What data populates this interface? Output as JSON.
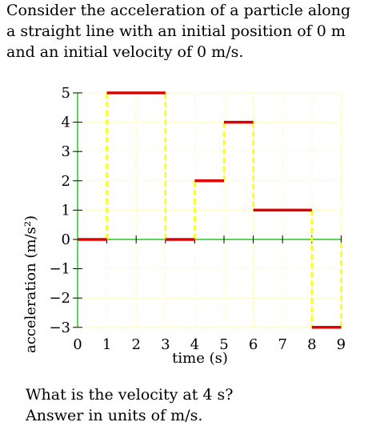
{
  "problem": {
    "intro_lines": [
      "Consider the acceleration of a particle along",
      "a straight line with an initial position of 0 m",
      "and an initial velocity of 0 m/s."
    ],
    "question_lines": [
      "What is the velocity at 4 s?",
      "Answer in units of  m/s."
    ]
  },
  "chart_data": {
    "type": "line",
    "xlabel": "time (s)",
    "ylabel": "acceleration (m/s²)",
    "xlim": [
      0,
      9
    ],
    "ylim": [
      -3,
      5
    ],
    "x_ticks": [
      0,
      1,
      2,
      3,
      4,
      5,
      6,
      7,
      8,
      9
    ],
    "y_ticks": [
      5,
      4,
      3,
      2,
      1,
      0,
      -1,
      -2,
      -3
    ],
    "y_tick_labels": [
      "5",
      "4",
      "3",
      "2",
      "1",
      "0",
      "−1",
      "−2",
      "−3"
    ],
    "grid": true,
    "series": [
      {
        "segments": [
          {
            "x_start": 0,
            "x_end": 1,
            "y": 0
          },
          {
            "x_start": 1,
            "x_end": 3,
            "y": 5
          },
          {
            "x_start": 3,
            "x_end": 4,
            "y": 0
          },
          {
            "x_start": 4,
            "x_end": 5,
            "y": 2
          },
          {
            "x_start": 5,
            "x_end": 6,
            "y": 4
          },
          {
            "x_start": 6,
            "x_end": 8,
            "y": 1
          },
          {
            "x_start": 8,
            "x_end": 9,
            "y": -3
          }
        ]
      }
    ],
    "colors": {
      "segment": "#e00000",
      "transition": "#ffff00",
      "grid": "#ffff99",
      "axis": "#22cc22"
    }
  }
}
